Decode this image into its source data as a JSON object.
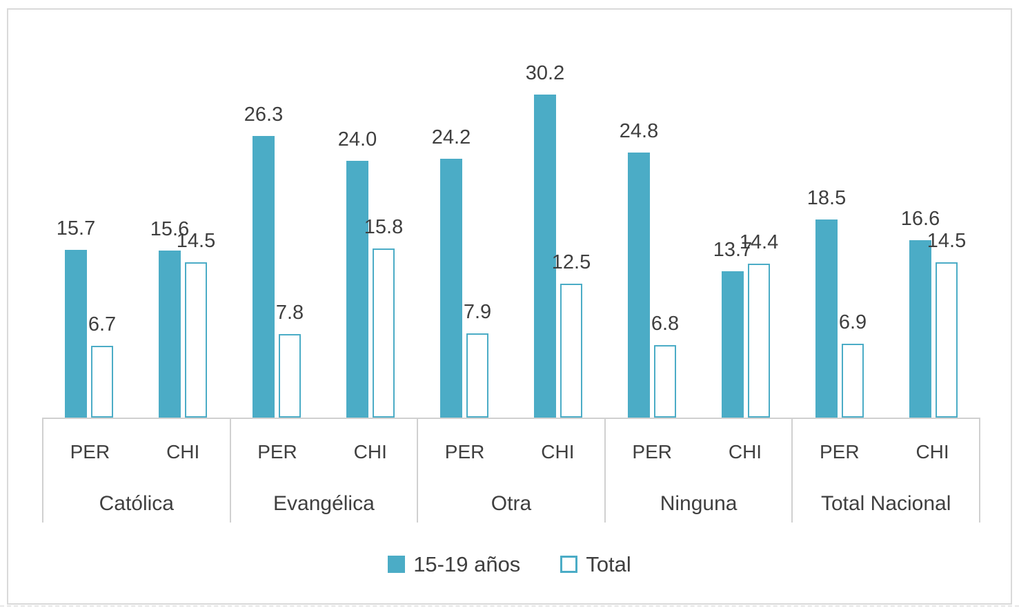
{
  "chart_data": {
    "type": "bar",
    "title": "",
    "orientation": "vertical",
    "groups": [
      "Católica",
      "Evangélica",
      "Otra",
      "Ninguna",
      "Total Nacional"
    ],
    "subcategories_per_group": [
      "PER",
      "CHI"
    ],
    "series": [
      {
        "name": "15-19 años",
        "fill": "solid",
        "values": [
          15.7,
          15.6,
          26.3,
          24.0,
          24.2,
          30.2,
          24.8,
          13.7,
          18.5,
          16.6
        ]
      },
      {
        "name": "Total",
        "fill": "outline",
        "values": [
          6.7,
          14.5,
          7.8,
          15.8,
          7.9,
          12.5,
          6.8,
          14.4,
          6.9,
          14.5
        ]
      }
    ],
    "value_order_note": "values are group-major: [Católica PER, Católica CHI, Evangélica PER, Evangélica CHI, Otra PER, Otra CHI, Ninguna PER, Ninguna CHI, Total Nacional PER, Total Nacional CHI]",
    "ylim": [
      0,
      32
    ],
    "y_axis_visible": false,
    "gridlines": false,
    "data_labels": true,
    "legend_position": "bottom"
  },
  "colors": {
    "accent_teal": "#4BACC6",
    "label_text": "#3F3F3F",
    "axis_line": "#D0D0D0",
    "frame_border": "#D9D9D9",
    "background": "#FFFFFF"
  }
}
